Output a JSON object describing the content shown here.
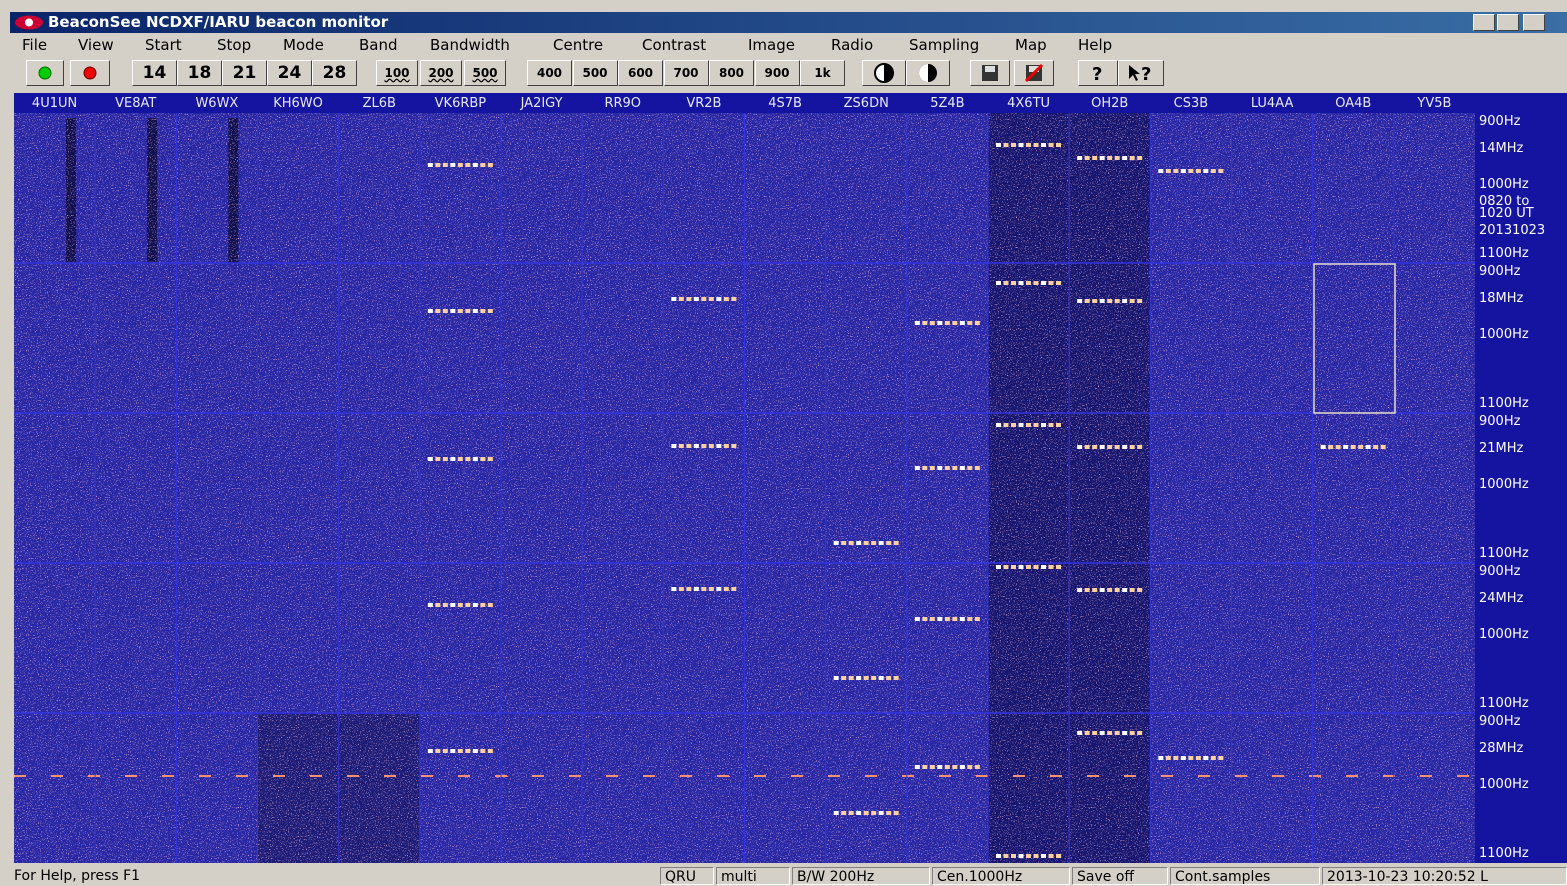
{
  "window": {
    "title": "BeaconSee NCDXF/IARU beacon monitor"
  },
  "menu": [
    "File",
    "View",
    "Start",
    "Stop",
    "Mode",
    "Band",
    "Bandwidth",
    "Centre",
    "Contrast",
    "Image",
    "Radio",
    "Sampling",
    "Map",
    "Help"
  ],
  "toolbar": {
    "bands": [
      "14",
      "18",
      "21",
      "24",
      "28"
    ],
    "bandwidths": [
      "100",
      "200",
      "500"
    ],
    "centres": [
      "400",
      "500",
      "600",
      "700",
      "800",
      "900",
      "1k"
    ]
  },
  "beacons": [
    "4U1UN",
    "VE8AT",
    "W6WX",
    "KH6WO",
    "ZL6B",
    "VK6RBP",
    "JA2IGY",
    "RR9O",
    "VR2B",
    "4S7B",
    "ZS6DN",
    "5Z4B",
    "4X6TU",
    "OH2B",
    "CS3B",
    "LU4AA",
    "OA4B",
    "YV5B"
  ],
  "bands": [
    {
      "top": "900Hz",
      "label": "14MHz",
      "centre": "1000Hz",
      "bottom": "1100Hz"
    },
    {
      "top": "900Hz",
      "label": "18MHz",
      "centre": "1000Hz",
      "bottom": "1100Hz"
    },
    {
      "top": "900Hz",
      "label": "21MHz",
      "centre": "1000Hz",
      "bottom": "1100Hz"
    },
    {
      "top": "900Hz",
      "label": "24MHz",
      "centre": "1000Hz",
      "bottom": "1100Hz"
    },
    {
      "top": "900Hz",
      "label": "28MHz",
      "centre": "1000Hz",
      "bottom": "1100Hz"
    }
  ],
  "time_note": [
    "0820 to",
    "1020 UT",
    "20131023"
  ],
  "status": [
    "For Help, press F1",
    "QRU",
    "multi",
    "B/W 200Hz",
    "Cen.1000Hz",
    "Save off",
    "Cont.samples",
    "2013-10-23 10:20:52 L"
  ]
}
